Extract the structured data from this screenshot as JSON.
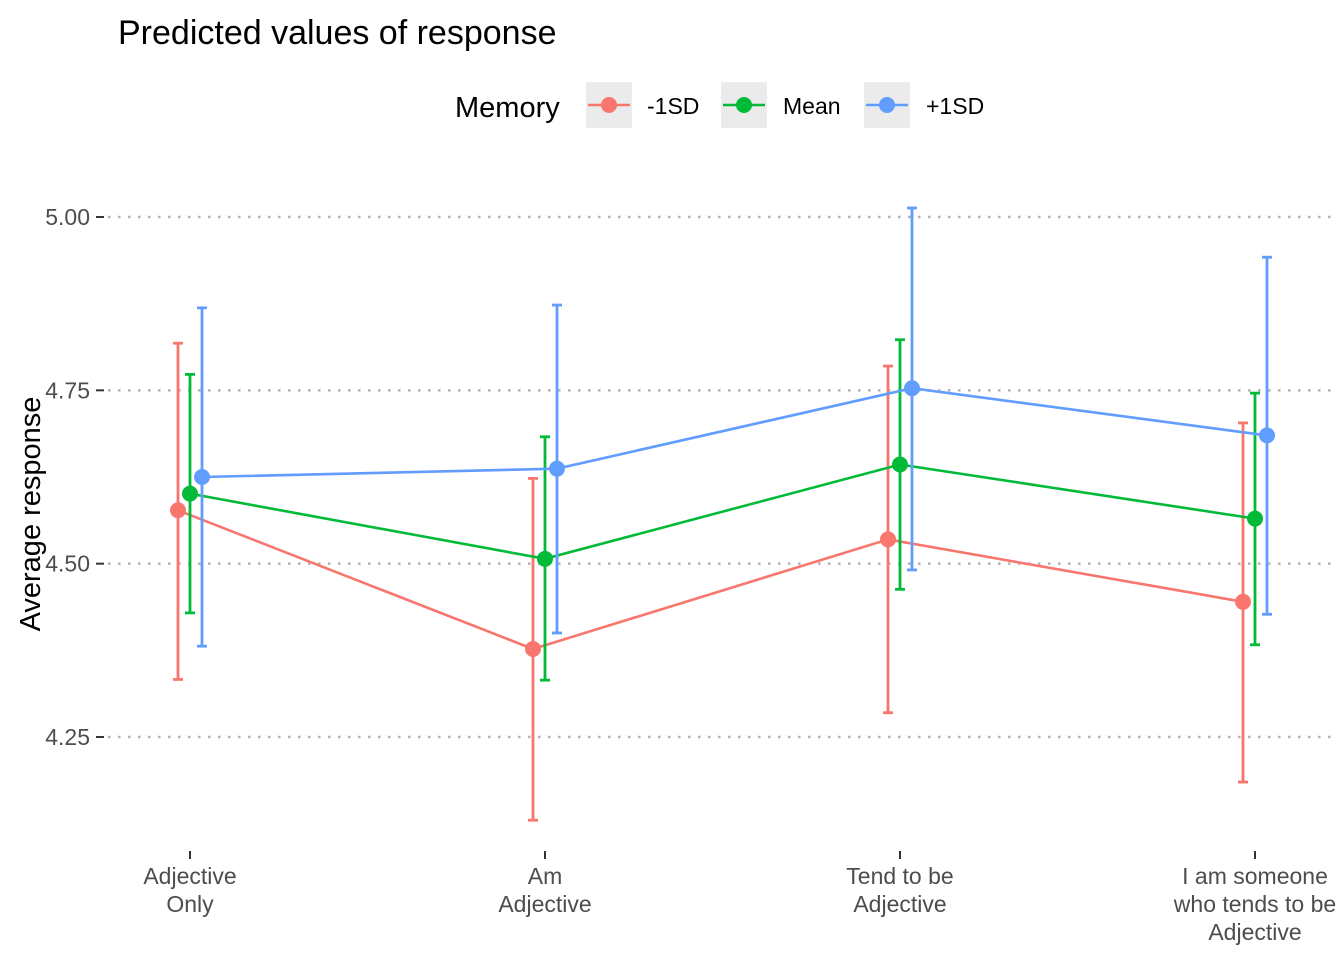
{
  "chart_data": {
    "type": "line",
    "title": "Predicted values of response",
    "xlabel": "",
    "ylabel": "Average response",
    "categories": [
      [
        "Adjective",
        "Only"
      ],
      [
        "Am",
        "Adjective"
      ],
      [
        "Tend to be",
        "Adjective"
      ],
      [
        "I am someone",
        "who tends to be",
        "Adjective"
      ]
    ],
    "yticks": [
      "4.25",
      "4.50",
      "4.75",
      "5.00"
    ],
    "ylim": [
      4.1,
      5.03
    ],
    "grid": "horizontal dotted",
    "legend": {
      "title": "Memory",
      "position": "top"
    },
    "series": [
      {
        "name": "-1SD",
        "color": "#F8766D",
        "values": [
          4.577,
          4.377,
          4.535,
          4.445
        ],
        "ci_low": [
          4.333,
          4.13,
          4.285,
          4.185
        ],
        "ci_high": [
          4.818,
          4.623,
          4.785,
          4.703
        ]
      },
      {
        "name": "Mean",
        "color": "#00BA38",
        "values": [
          4.601,
          4.507,
          4.643,
          4.565
        ],
        "ci_low": [
          4.429,
          4.332,
          4.463,
          4.383
        ],
        "ci_high": [
          4.773,
          4.683,
          4.823,
          4.746
        ]
      },
      {
        "name": "+1SD",
        "color": "#619CFF",
        "values": [
          4.625,
          4.637,
          4.753,
          4.685
        ],
        "ci_low": [
          4.381,
          4.4,
          4.491,
          4.427
        ],
        "ci_high": [
          4.869,
          4.873,
          5.013,
          4.942
        ]
      }
    ]
  }
}
